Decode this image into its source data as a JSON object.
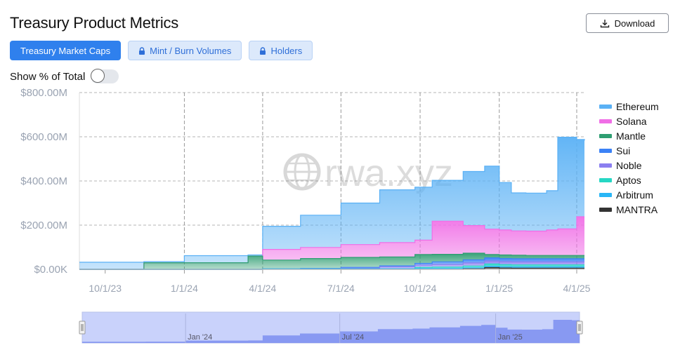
{
  "header": {
    "title": "Treasury Product Metrics",
    "download_label": "Download"
  },
  "tabs": [
    {
      "label": "Treasury Market Caps",
      "active": true,
      "locked": false
    },
    {
      "label": "Mint / Burn Volumes",
      "active": false,
      "locked": true
    },
    {
      "label": "Holders",
      "active": false,
      "locked": true
    }
  ],
  "toggle": {
    "label": "Show % of Total",
    "on": false
  },
  "watermark": "rwa.xyz",
  "navigator": {
    "ticks": [
      "Jan '24",
      "Jul '24",
      "Jan '25"
    ]
  },
  "chart_data": {
    "type": "area",
    "stacked": true,
    "xlim": [
      "2023-09-01",
      "2025-04-10"
    ],
    "ylim": [
      0,
      800
    ],
    "y_unit": "$M",
    "y_ticks": [
      "$0.00K",
      "$200.00M",
      "$400.00M",
      "$600.00M",
      "$800.00M"
    ],
    "x_ticks": [
      "10/1/23",
      "1/1/24",
      "4/1/24",
      "7/1/24",
      "10/1/24",
      "1/1/25",
      "4/1/25"
    ],
    "grid": true,
    "legend_position": "right",
    "x": [
      "2023-09-01",
      "2023-11-15",
      "2024-01-01",
      "2024-03-15",
      "2024-04-01",
      "2024-05-15",
      "2024-07-01",
      "2024-08-15",
      "2024-09-25",
      "2024-10-15",
      "2024-11-20",
      "2024-12-15",
      "2025-01-01",
      "2025-01-15",
      "2025-02-01",
      "2025-02-25",
      "2025-03-10",
      "2025-04-01",
      "2025-04-10"
    ],
    "series": [
      {
        "name": "MANTRA",
        "color": "#333333",
        "values": [
          0,
          0,
          0,
          0,
          0,
          0,
          0,
          0,
          0,
          0,
          2,
          8,
          6,
          5,
          5,
          5,
          5,
          5,
          5
        ]
      },
      {
        "name": "Arbitrum",
        "color": "#29b6f6",
        "values": [
          0,
          0,
          0,
          0,
          2,
          2,
          3,
          3,
          4,
          4,
          5,
          6,
          6,
          6,
          6,
          6,
          6,
          6,
          6
        ]
      },
      {
        "name": "Aptos",
        "color": "#26d7c4",
        "values": [
          0,
          0,
          0,
          0,
          0,
          0,
          0,
          0,
          5,
          6,
          8,
          10,
          9,
          9,
          9,
          9,
          9,
          9,
          9
        ]
      },
      {
        "name": "Noble",
        "color": "#8b7ff0",
        "values": [
          0,
          0,
          0,
          0,
          0,
          0,
          2,
          8,
          10,
          12,
          14,
          14,
          14,
          14,
          14,
          14,
          14,
          14,
          14
        ]
      },
      {
        "name": "Sui",
        "color": "#3b82f6",
        "values": [
          0,
          0,
          0,
          0,
          0,
          2,
          4,
          5,
          8,
          12,
          14,
          14,
          14,
          14,
          14,
          14,
          14,
          14,
          14
        ]
      },
      {
        "name": "Mantle",
        "color": "#2e9e72",
        "values": [
          0,
          30,
          30,
          60,
          40,
          45,
          45,
          40,
          40,
          34,
          30,
          15,
          16,
          16,
          15,
          15,
          15,
          15,
          15
        ]
      },
      {
        "name": "Solana",
        "color": "#f06ee6",
        "values": [
          0,
          0,
          0,
          0,
          48,
          50,
          58,
          65,
          65,
          150,
          125,
          115,
          113,
          110,
          110,
          115,
          120,
          175,
          175
        ]
      },
      {
        "name": "Ethereum",
        "color": "#5ab1f5",
        "values": [
          32,
          5,
          32,
          5,
          105,
          146,
          188,
          239,
          240,
          185,
          245,
          285,
          215,
          172,
          172,
          178,
          415,
          350,
          345
        ]
      }
    ]
  }
}
